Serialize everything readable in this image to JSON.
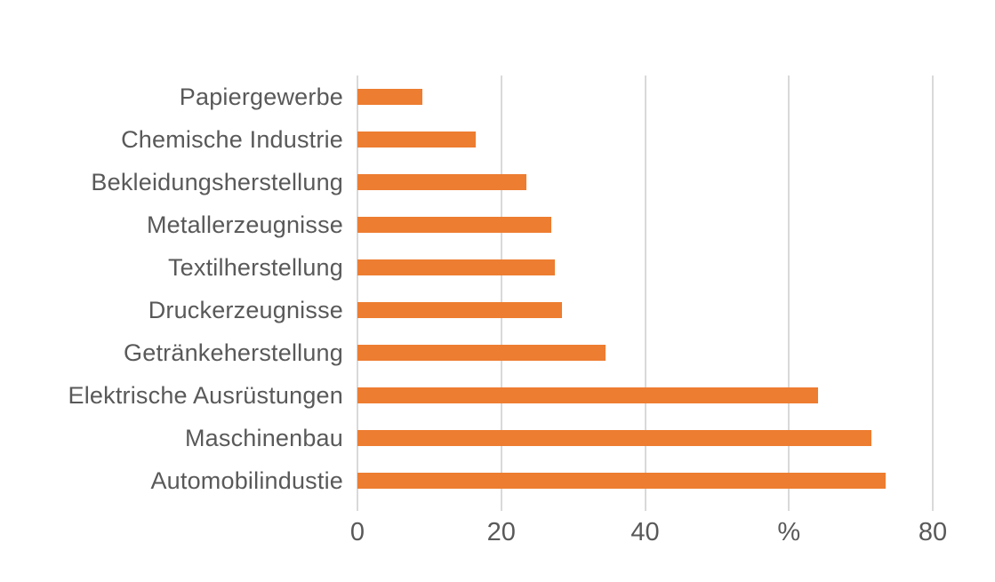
{
  "chart_data": {
    "type": "bar",
    "orientation": "horizontal",
    "title": "",
    "categories": [
      "Papiergewerbe",
      "Chemische Industrie",
      "Bekleidungsherstellung",
      "Metallerzeugnisse",
      "Textilherstellung",
      "Druckerzeugnisse",
      "Getränkeherstellung",
      "Elektrische Ausrüstungen",
      "Maschinenbau",
      "Automobilindustie"
    ],
    "values": [
      9,
      16.5,
      23.5,
      27,
      27.5,
      28.5,
      34.5,
      64,
      71.5,
      73.5
    ],
    "unit": "%",
    "xlabel": "",
    "ylabel": "",
    "x_axis": {
      "range": [
        0,
        80
      ],
      "grid": true,
      "ticks": [
        {
          "value": 0,
          "label": "0"
        },
        {
          "value": 20,
          "label": "20"
        },
        {
          "value": 40,
          "label": "40"
        },
        {
          "value": 60,
          "label": "%"
        },
        {
          "value": 80,
          "label": "80"
        }
      ]
    },
    "legend": "none",
    "colors": {
      "bar": "#ED7D31",
      "grid": "#D9D9D9",
      "text": "#595959",
      "background": "#FFFFFF"
    }
  }
}
